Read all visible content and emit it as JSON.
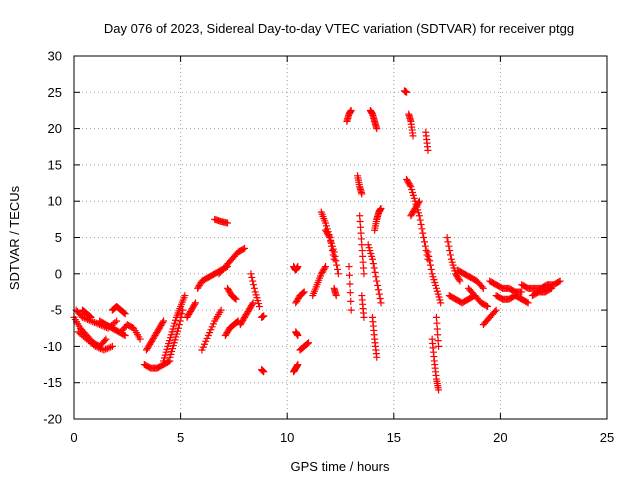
{
  "chart_data": {
    "type": "scatter",
    "title": "Day 076 of 2023, Sidereal Day-to-day VTEC variation (SDTVAR) for receiver ptgg",
    "xlabel": "GPS time / hours",
    "ylabel": "SDTVAR / TECUs",
    "xlim": [
      0,
      25
    ],
    "ylim": [
      -20,
      30
    ],
    "xticks": [
      "0",
      "5",
      "10",
      "15",
      "20",
      "25"
    ],
    "yticks": [
      "-20",
      "-15",
      "-10",
      "-5",
      "0",
      "5",
      "10",
      "15",
      "20",
      "25",
      "30"
    ],
    "grid": true,
    "marker": "+",
    "color": "#ff0000",
    "segments": [
      {
        "x": [
          0.0,
          0.3,
          0.6,
          0.9,
          1.2,
          1.5
        ],
        "y": [
          -6.0,
          -7.5,
          -8.5,
          -9.5,
          -10.0,
          -9.0
        ]
      },
      {
        "x": [
          0.1,
          0.4,
          0.8,
          1.2,
          1.6,
          2.0
        ],
        "y": [
          -5.0,
          -6.0,
          -6.5,
          -7.0,
          -7.5,
          -6.5
        ]
      },
      {
        "x": [
          0.2,
          0.6,
          1.0,
          1.4,
          1.8
        ],
        "y": [
          -8.0,
          -9.0,
          -10.0,
          -10.5,
          -10.0
        ]
      },
      {
        "x": [
          0.4,
          0.6,
          0.8
        ],
        "y": [
          -5.0,
          -5.5,
          -6.0
        ]
      },
      {
        "x": [
          1.2,
          1.5,
          1.8,
          2.1,
          2.4
        ],
        "y": [
          -6.5,
          -7.0,
          -7.5,
          -8.0,
          -8.5
        ]
      },
      {
        "x": [
          1.8,
          2.0,
          2.2,
          2.4
        ],
        "y": [
          -5.0,
          -4.5,
          -5.0,
          -5.5
        ]
      },
      {
        "x": [
          2.2,
          2.5,
          2.8,
          3.1
        ],
        "y": [
          -8.0,
          -7.0,
          -7.5,
          -9.0
        ]
      },
      {
        "x": [
          3.3,
          3.6,
          3.9,
          4.2,
          4.5
        ],
        "y": [
          -12.5,
          -13.0,
          -13.0,
          -12.5,
          -12.0
        ]
      },
      {
        "x": [
          3.4,
          3.6,
          3.8,
          4.0,
          4.2
        ],
        "y": [
          -10.5,
          -9.5,
          -8.5,
          -7.5,
          -6.5
        ]
      },
      {
        "x": [
          4.2,
          4.4,
          4.6,
          4.8,
          5.0,
          5.2
        ],
        "y": [
          -12.0,
          -10.0,
          -8.0,
          -6.0,
          -4.5,
          -3.0
        ]
      },
      {
        "x": [
          4.5,
          4.7,
          4.9,
          5.1
        ],
        "y": [
          -11.5,
          -9.5,
          -7.5,
          -5.0
        ]
      },
      {
        "x": [
          5.3,
          5.5,
          5.7
        ],
        "y": [
          -6.0,
          -5.0,
          -4.0
        ]
      },
      {
        "x": [
          5.8,
          6.0,
          6.3,
          6.6,
          6.9,
          7.2
        ],
        "y": [
          -2.0,
          -1.0,
          -0.5,
          0.0,
          0.5,
          1.0
        ]
      },
      {
        "x": [
          6.0,
          6.3,
          6.6,
          6.9
        ],
        "y": [
          -10.5,
          -8.5,
          -6.5,
          -5.0
        ]
      },
      {
        "x": [
          6.6,
          6.9,
          7.2
        ],
        "y": [
          7.5,
          7.2,
          7.0
        ]
      },
      {
        "x": [
          7.1,
          7.3,
          7.5,
          7.7
        ],
        "y": [
          -8.5,
          -7.5,
          -7.0,
          -6.5
        ]
      },
      {
        "x": [
          6.8,
          7.1,
          7.4,
          7.7,
          8.0
        ],
        "y": [
          0.0,
          1.0,
          2.0,
          3.0,
          3.5
        ]
      },
      {
        "x": [
          7.2,
          7.4,
          7.6
        ],
        "y": [
          -2.0,
          -3.0,
          -3.5
        ]
      },
      {
        "x": [
          7.8,
          8.0,
          8.2,
          8.4
        ],
        "y": [
          -7.0,
          -6.0,
          -5.0,
          -4.0
        ]
      },
      {
        "x": [
          8.3,
          8.5,
          8.7
        ],
        "y": [
          0.0,
          -2.5,
          -4.5
        ]
      },
      {
        "x": [
          8.8,
          8.9
        ],
        "y": [
          -13.2,
          -13.5
        ]
      },
      {
        "x": [
          8.8,
          8.9
        ],
        "y": [
          -6.0,
          -5.8
        ]
      },
      {
        "x": [
          10.3,
          10.4,
          10.5
        ],
        "y": [
          -13.5,
          -13.0,
          -12.5
        ]
      },
      {
        "x": [
          10.3,
          10.4,
          10.5
        ],
        "y": [
          1.0,
          0.5,
          1.0
        ]
      },
      {
        "x": [
          10.4,
          10.6,
          10.8
        ],
        "y": [
          -4.0,
          -3.0,
          -2.5
        ]
      },
      {
        "x": [
          10.6,
          10.8,
          11.0
        ],
        "y": [
          -10.5,
          -10.0,
          -9.5
        ]
      },
      {
        "x": [
          10.4,
          10.5
        ],
        "y": [
          -8.0,
          -8.5
        ]
      },
      {
        "x": [
          11.2,
          11.4,
          11.6,
          11.8
        ],
        "y": [
          -3.0,
          -1.5,
          0.0,
          1.0
        ]
      },
      {
        "x": [
          11.6,
          11.8,
          12.0,
          12.2
        ],
        "y": [
          8.5,
          7.0,
          5.0,
          2.0
        ]
      },
      {
        "x": [
          11.8,
          12.0,
          12.2,
          12.4
        ],
        "y": [
          6.0,
          5.0,
          3.0,
          0.0
        ]
      },
      {
        "x": [
          12.2,
          12.3
        ],
        "y": [
          -2.0,
          -3.0
        ]
      },
      {
        "x": [
          12.8,
          12.9,
          13.0
        ],
        "y": [
          21.0,
          22.0,
          22.5
        ]
      },
      {
        "x": [
          12.9,
          13.0
        ],
        "y": [
          1.0,
          -5.0
        ]
      },
      {
        "x": [
          13.3,
          13.4,
          13.5
        ],
        "y": [
          13.5,
          12.0,
          11.0
        ]
      },
      {
        "x": [
          13.4,
          13.5,
          13.6
        ],
        "y": [
          8.0,
          4.0,
          0.0
        ]
      },
      {
        "x": [
          13.5,
          13.6
        ],
        "y": [
          -3.0,
          -6.0
        ]
      },
      {
        "x": [
          13.9,
          14.0,
          14.1,
          14.2
        ],
        "y": [
          22.5,
          22.0,
          21.0,
          20.0
        ]
      },
      {
        "x": [
          13.8,
          14.0,
          14.2,
          14.4
        ],
        "y": [
          4.0,
          2.0,
          -1.0,
          -4.0
        ]
      },
      {
        "x": [
          14.0,
          14.1,
          14.2
        ],
        "y": [
          -6.0,
          -9.0,
          -11.5
        ]
      },
      {
        "x": [
          14.1,
          14.2,
          14.3,
          14.4
        ],
        "y": [
          6.0,
          7.5,
          8.5,
          9.0
        ]
      },
      {
        "x": [
          15.5,
          15.6
        ],
        "y": [
          25.2,
          25.0
        ]
      },
      {
        "x": [
          15.7,
          15.8,
          15.9
        ],
        "y": [
          22.0,
          21.0,
          19.0
        ]
      },
      {
        "x": [
          15.6,
          15.8,
          16.0,
          16.2,
          16.4,
          16.6
        ],
        "y": [
          13.0,
          12.0,
          10.0,
          8.0,
          5.0,
          2.0
        ]
      },
      {
        "x": [
          15.8,
          16.0,
          16.2
        ],
        "y": [
          8.0,
          9.0,
          10.0
        ]
      },
      {
        "x": [
          16.5,
          16.6
        ],
        "y": [
          19.5,
          17.0
        ]
      },
      {
        "x": [
          16.6,
          16.8,
          17.0,
          17.2
        ],
        "y": [
          3.0,
          0.0,
          -2.0,
          -4.0
        ]
      },
      {
        "x": [
          16.8,
          16.9,
          17.0,
          17.1
        ],
        "y": [
          -9.0,
          -12.0,
          -14.5,
          -16.0
        ]
      },
      {
        "x": [
          17.0,
          17.1
        ],
        "y": [
          -6.0,
          -10.0
        ]
      },
      {
        "x": [
          17.5,
          17.7,
          17.9,
          18.1
        ],
        "y": [
          5.0,
          2.0,
          0.0,
          -1.0
        ]
      },
      {
        "x": [
          17.6,
          17.9,
          18.2,
          18.5,
          18.8
        ],
        "y": [
          -3.0,
          -3.5,
          -4.0,
          -3.5,
          -3.0
        ]
      },
      {
        "x": [
          18.0,
          18.3,
          18.6,
          18.9,
          19.2
        ],
        "y": [
          0.5,
          0.0,
          -0.5,
          -1.0,
          -2.0
        ]
      },
      {
        "x": [
          18.5,
          18.8,
          19.1,
          19.4
        ],
        "y": [
          -2.0,
          -3.0,
          -4.0,
          -4.5
        ]
      },
      {
        "x": [
          19.2,
          19.5,
          19.8
        ],
        "y": [
          -7.0,
          -6.0,
          -5.0
        ]
      },
      {
        "x": [
          19.5,
          19.8,
          20.1,
          20.4,
          20.7,
          21.0
        ],
        "y": [
          -1.0,
          -1.5,
          -2.0,
          -2.0,
          -2.5,
          -2.5
        ]
      },
      {
        "x": [
          19.8,
          20.1,
          20.4,
          20.7,
          21.0,
          21.3
        ],
        "y": [
          -3.0,
          -3.5,
          -3.5,
          -3.0,
          -3.5,
          -4.0
        ]
      },
      {
        "x": [
          21.0,
          21.3,
          21.6,
          21.9,
          22.2,
          22.5,
          22.8
        ],
        "y": [
          -1.5,
          -2.0,
          -2.0,
          -2.0,
          -1.5,
          -1.5,
          -1.0
        ]
      },
      {
        "x": [
          21.5,
          21.8,
          22.1,
          22.4
        ],
        "y": [
          -3.0,
          -2.5,
          -2.5,
          -2.0
        ]
      }
    ]
  }
}
